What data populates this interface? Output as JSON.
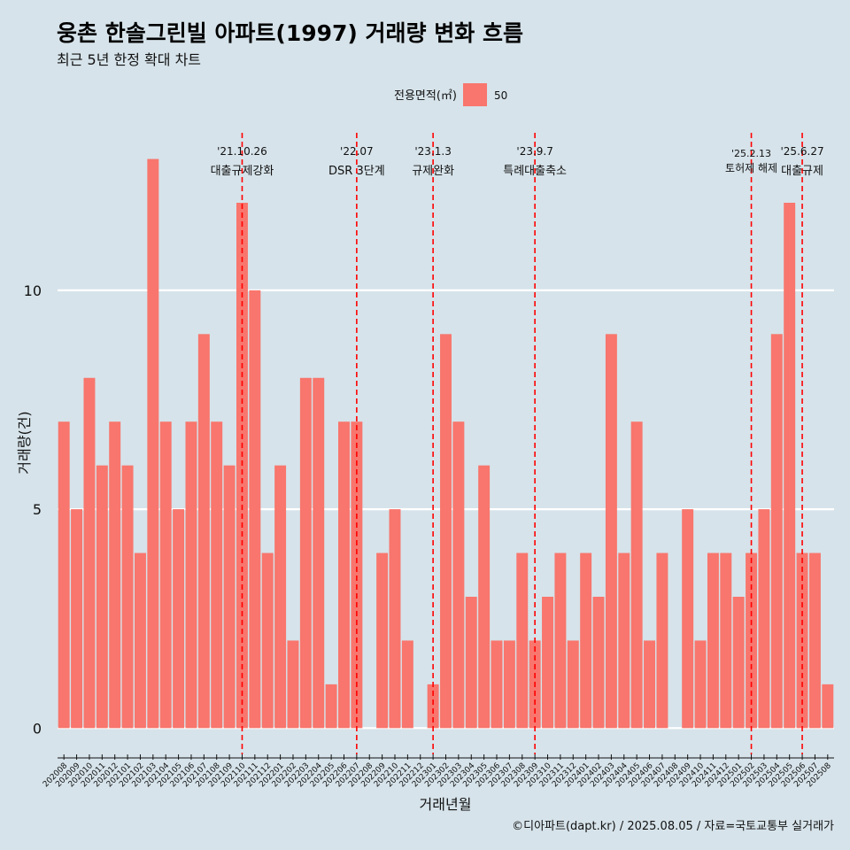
{
  "title": "웅촌 한솔그린빌 아파트(1997) 거래량 변화 흐름",
  "subtitle": "최근 5년 한정 확대 차트",
  "caption": "©디아파트(dapt.kr) / 2025.08.05 / 자료=국토교통부 실거래가",
  "colors": {
    "background": "#d6e3ea",
    "bar": "#f8766d",
    "gridline": "#ffffff",
    "event_line": "#ff0000"
  },
  "chart_data": {
    "type": "bar",
    "xlabel": "거래년월",
    "ylabel": "거래량(건)",
    "ylim": [
      -0.6,
      13.8
    ],
    "yticks": [
      0,
      5,
      10
    ],
    "grid": true,
    "legend": {
      "title": "전용면적(㎡)",
      "position": "top",
      "entries": [
        "50"
      ]
    },
    "categories": [
      "202008",
      "202009",
      "202010",
      "202011",
      "202012",
      "202101",
      "202102",
      "202103",
      "202104",
      "202105",
      "202106",
      "202107",
      "202108",
      "202109",
      "202110",
      "202111",
      "202112",
      "202201",
      "202202",
      "202203",
      "202204",
      "202205",
      "202206",
      "202207",
      "202208",
      "202209",
      "202210",
      "202211",
      "202212",
      "202301",
      "202302",
      "202303",
      "202304",
      "202305",
      "202306",
      "202307",
      "202308",
      "202309",
      "202310",
      "202311",
      "202312",
      "202401",
      "202402",
      "202403",
      "202404",
      "202405",
      "202406",
      "202407",
      "202408",
      "202409",
      "202410",
      "202411",
      "202412",
      "202501",
      "202502",
      "202503",
      "202504",
      "202505",
      "202506",
      "202507",
      "202508"
    ],
    "series": [
      {
        "name": "50",
        "values": [
          7,
          5,
          8,
          6,
          7,
          6,
          4,
          13,
          7,
          5,
          7,
          9,
          7,
          6,
          12,
          10,
          4,
          6,
          2,
          8,
          8,
          1,
          7,
          7,
          0,
          4,
          5,
          2,
          0,
          1,
          9,
          7,
          3,
          6,
          2,
          2,
          4,
          2,
          3,
          4,
          2,
          4,
          3,
          9,
          4,
          7,
          2,
          4,
          0,
          5,
          2,
          4,
          4,
          3,
          4,
          5,
          9,
          12,
          4,
          4,
          1
        ]
      }
    ],
    "events": [
      {
        "date": "'21.10.26",
        "label": "대출규제강화",
        "category": "202110"
      },
      {
        "date": "'22.07",
        "label": "DSR 3단계",
        "category": "202207"
      },
      {
        "date": "'23.1.3",
        "label": "규제완화",
        "category": "202301"
      },
      {
        "date": "'23.9.7",
        "label": "특례대출축소",
        "category": "202309"
      },
      {
        "date": "'25.2.13",
        "label": "토허제 해제",
        "category": "202502"
      },
      {
        "date": "'25.6.27",
        "label": "대출규제",
        "category": "202506"
      }
    ]
  }
}
